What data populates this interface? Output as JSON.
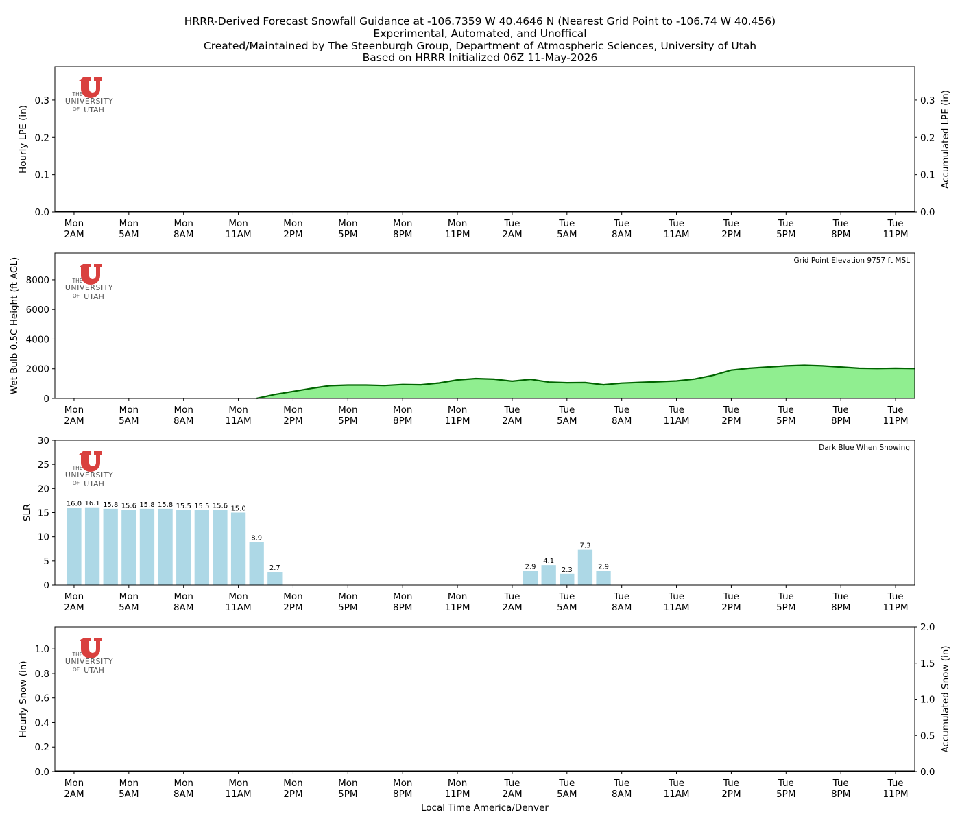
{
  "title_lines": [
    "HRRR-Derived Forecast Snowfall Guidance at -106.7359 W 40.4646 N (Nearest Grid Point to -106.74 W 40.456)",
    "Experimental, Automated, and Unoffical",
    "Created/Maintained by The Steenburgh Group, Department of Atmospheric Sciences, University of Utah",
    "Based on HRRR Initialized 06Z 11-May-2026"
  ],
  "logo": {
    "the": "THE",
    "university": "UNIVERSITY",
    "of": "OF",
    "utah": "UTAH",
    "color": "#d9403e"
  },
  "x_ticks": [
    [
      "Mon",
      "2AM"
    ],
    [
      "Mon",
      "5AM"
    ],
    [
      "Mon",
      "8AM"
    ],
    [
      "Mon",
      "11AM"
    ],
    [
      "Mon",
      "2PM"
    ],
    [
      "Mon",
      "5PM"
    ],
    [
      "Mon",
      "8PM"
    ],
    [
      "Mon",
      "11PM"
    ],
    [
      "Tue",
      "2AM"
    ],
    [
      "Tue",
      "5AM"
    ],
    [
      "Tue",
      "8AM"
    ],
    [
      "Tue",
      "11AM"
    ],
    [
      "Tue",
      "2PM"
    ],
    [
      "Tue",
      "5PM"
    ],
    [
      "Tue",
      "8PM"
    ],
    [
      "Tue",
      "11PM"
    ]
  ],
  "xlabel": "Local Time America/Denver",
  "chart_data": [
    {
      "type": "bar",
      "ylabel": "Hourly LPE (in)",
      "ylabel_right": "Accumulated LPE (in)",
      "ylim": [
        0,
        0.39
      ],
      "yticks": [
        "0.0",
        "0.1",
        "0.2",
        "0.3"
      ],
      "ytick_values": [
        0,
        0.1,
        0.2,
        0.3
      ],
      "values": []
    },
    {
      "type": "area",
      "ylabel": "Wet Bulb 0.5C Height (ft AGL)",
      "annotation": "Grid Point Elevation 9757 ft MSL",
      "ylim": [
        0,
        9800
      ],
      "yticks": [
        "0",
        "2000",
        "4000",
        "6000",
        "8000"
      ],
      "ytick_values": [
        0,
        2000,
        4000,
        6000,
        8000
      ],
      "x_hours": [
        11,
        12,
        13,
        14,
        15,
        16,
        17,
        18,
        19,
        20,
        21,
        22,
        23,
        24,
        25,
        26,
        27,
        28,
        29,
        30,
        31,
        32,
        33,
        34,
        35,
        36,
        37,
        38,
        39,
        40,
        41,
        42,
        43,
        44,
        45,
        46,
        47,
        48
      ],
      "values": [
        0,
        270,
        470,
        680,
        860,
        900,
        900,
        870,
        940,
        920,
        1040,
        1250,
        1340,
        1300,
        1160,
        1290,
        1100,
        1060,
        1070,
        920,
        1030,
        1080,
        1130,
        1180,
        1310,
        1560,
        1910,
        2040,
        2120,
        2200,
        2240,
        2200,
        2120,
        2040,
        2020,
        2040,
        2020,
        2150
      ],
      "fill_color": "#90ee90",
      "line_color": "#006400"
    },
    {
      "type": "bar",
      "ylabel": "SLR",
      "annotation": "Dark Blue When Snowing",
      "ylim": [
        0,
        30
      ],
      "yticks": [
        "0",
        "5",
        "10",
        "15",
        "20",
        "25",
        "30"
      ],
      "ytick_values": [
        0,
        5,
        10,
        15,
        20,
        25,
        30
      ],
      "x_hours": [
        1,
        2,
        3,
        4,
        5,
        6,
        7,
        8,
        9,
        10,
        11,
        12,
        26,
        27,
        28,
        29,
        30
      ],
      "values": [
        16.0,
        16.1,
        15.8,
        15.6,
        15.8,
        15.8,
        15.5,
        15.5,
        15.6,
        15.0,
        8.9,
        2.7,
        2.9,
        4.1,
        2.3,
        7.3,
        2.9
      ],
      "labels": [
        "16.0",
        "16.1",
        "15.8",
        "15.6",
        "15.8",
        "15.8",
        "15.5",
        "15.5",
        "15.6",
        "15.0",
        "8.9",
        "2.7",
        "2.9",
        "4.1",
        "2.3",
        "7.3",
        "2.9"
      ],
      "bar_color": "#add8e6"
    },
    {
      "type": "bar",
      "ylabel": "Hourly Snow (in)",
      "ylabel_right": "Accumulated Snow (in)",
      "ylim": [
        0,
        1.18
      ],
      "yticks": [
        "0.0",
        "0.2",
        "0.4",
        "0.6",
        "0.8",
        "1.0"
      ],
      "ytick_values": [
        0,
        0.2,
        0.4,
        0.6,
        0.8,
        1.0
      ],
      "ylim_right": [
        0,
        2.0
      ],
      "yticks_right": [
        "0.0",
        "0.5",
        "1.0",
        "1.5",
        "2.0"
      ],
      "ytick_values_right": [
        0,
        0.5,
        1.0,
        1.5,
        2.0
      ],
      "values": []
    }
  ]
}
